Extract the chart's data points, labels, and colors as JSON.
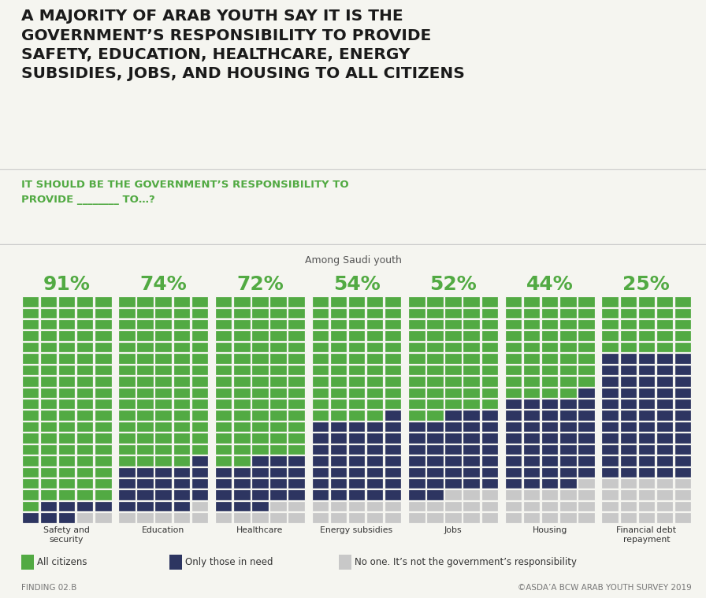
{
  "title_line1": "A MAJORITY OF ARAB YOUTH SAY IT IS THE",
  "title_line2": "GOVERNMENT’S RESPONSIBILITY TO PROVIDE",
  "title_line3": "SAFETY, EDUCATION, HEALTHCARE, ENERGY",
  "title_line4": "SUBSIDIES, JOBS, AND HOUSING TO ALL CITIZENS",
  "subtitle": "IT SHOULD BE THE GOVERNMENT’S RESPONSIBILITY TO\nPROVIDE ________ TO…?",
  "among": "Among Saudi youth",
  "categories": [
    "Safety and\nsecurity",
    "Education",
    "Healthcare",
    "Energy subsidies",
    "Jobs",
    "Housing",
    "Financial debt\nrepayment"
  ],
  "percentages": [
    91,
    74,
    72,
    54,
    52,
    44,
    25
  ],
  "green_pct": [
    91,
    74,
    72,
    54,
    52,
    44,
    25
  ],
  "navy_pct": [
    7,
    20,
    21,
    36,
    35,
    40,
    55
  ],
  "gray_pct": [
    2,
    6,
    7,
    10,
    13,
    16,
    20
  ],
  "green_color": "#52aa43",
  "navy_color": "#2d3561",
  "gray_color": "#c8c8c8",
  "background_color": "#f5f5f0",
  "title_color": "#1a1a1a",
  "subtitle_color": "#52aa43",
  "pct_color": "#52aa43",
  "legend_labels": [
    "All citizens",
    "Only those in need",
    "No one. It’s not the government’s responsibility"
  ],
  "finding_text": "FINDING 02.B",
  "copyright_text": "©ASDA’A BCW ARAB YOUTH SURVEY 2019",
  "cols": 5,
  "rows": 20
}
